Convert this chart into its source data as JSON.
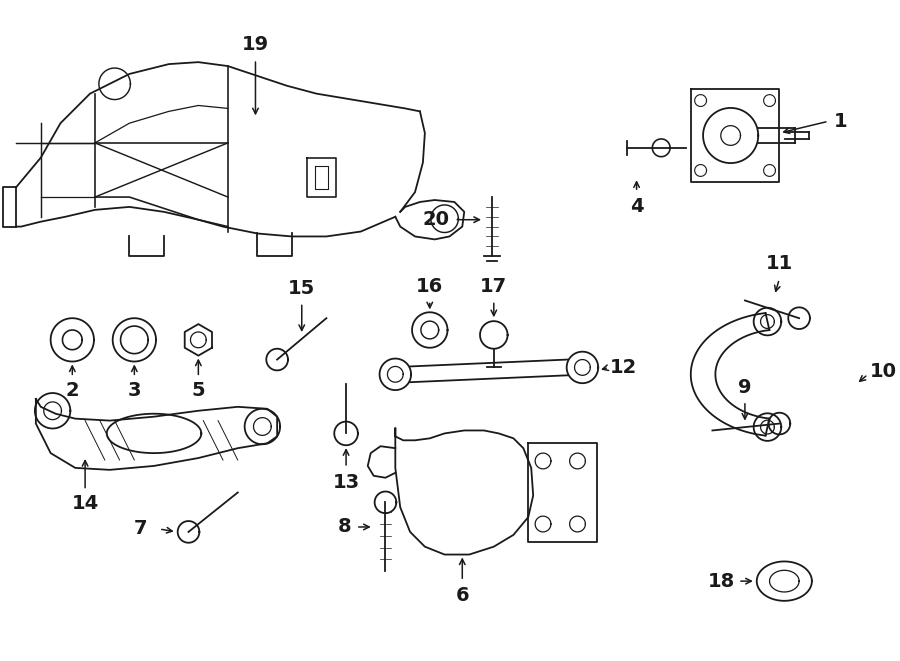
{
  "bg_color": "#ffffff",
  "line_color": "#1a1a1a",
  "text_color": "#1a1a1a",
  "lw": 1.3,
  "fig_w": 9.0,
  "fig_h": 6.61,
  "dpi": 100
}
